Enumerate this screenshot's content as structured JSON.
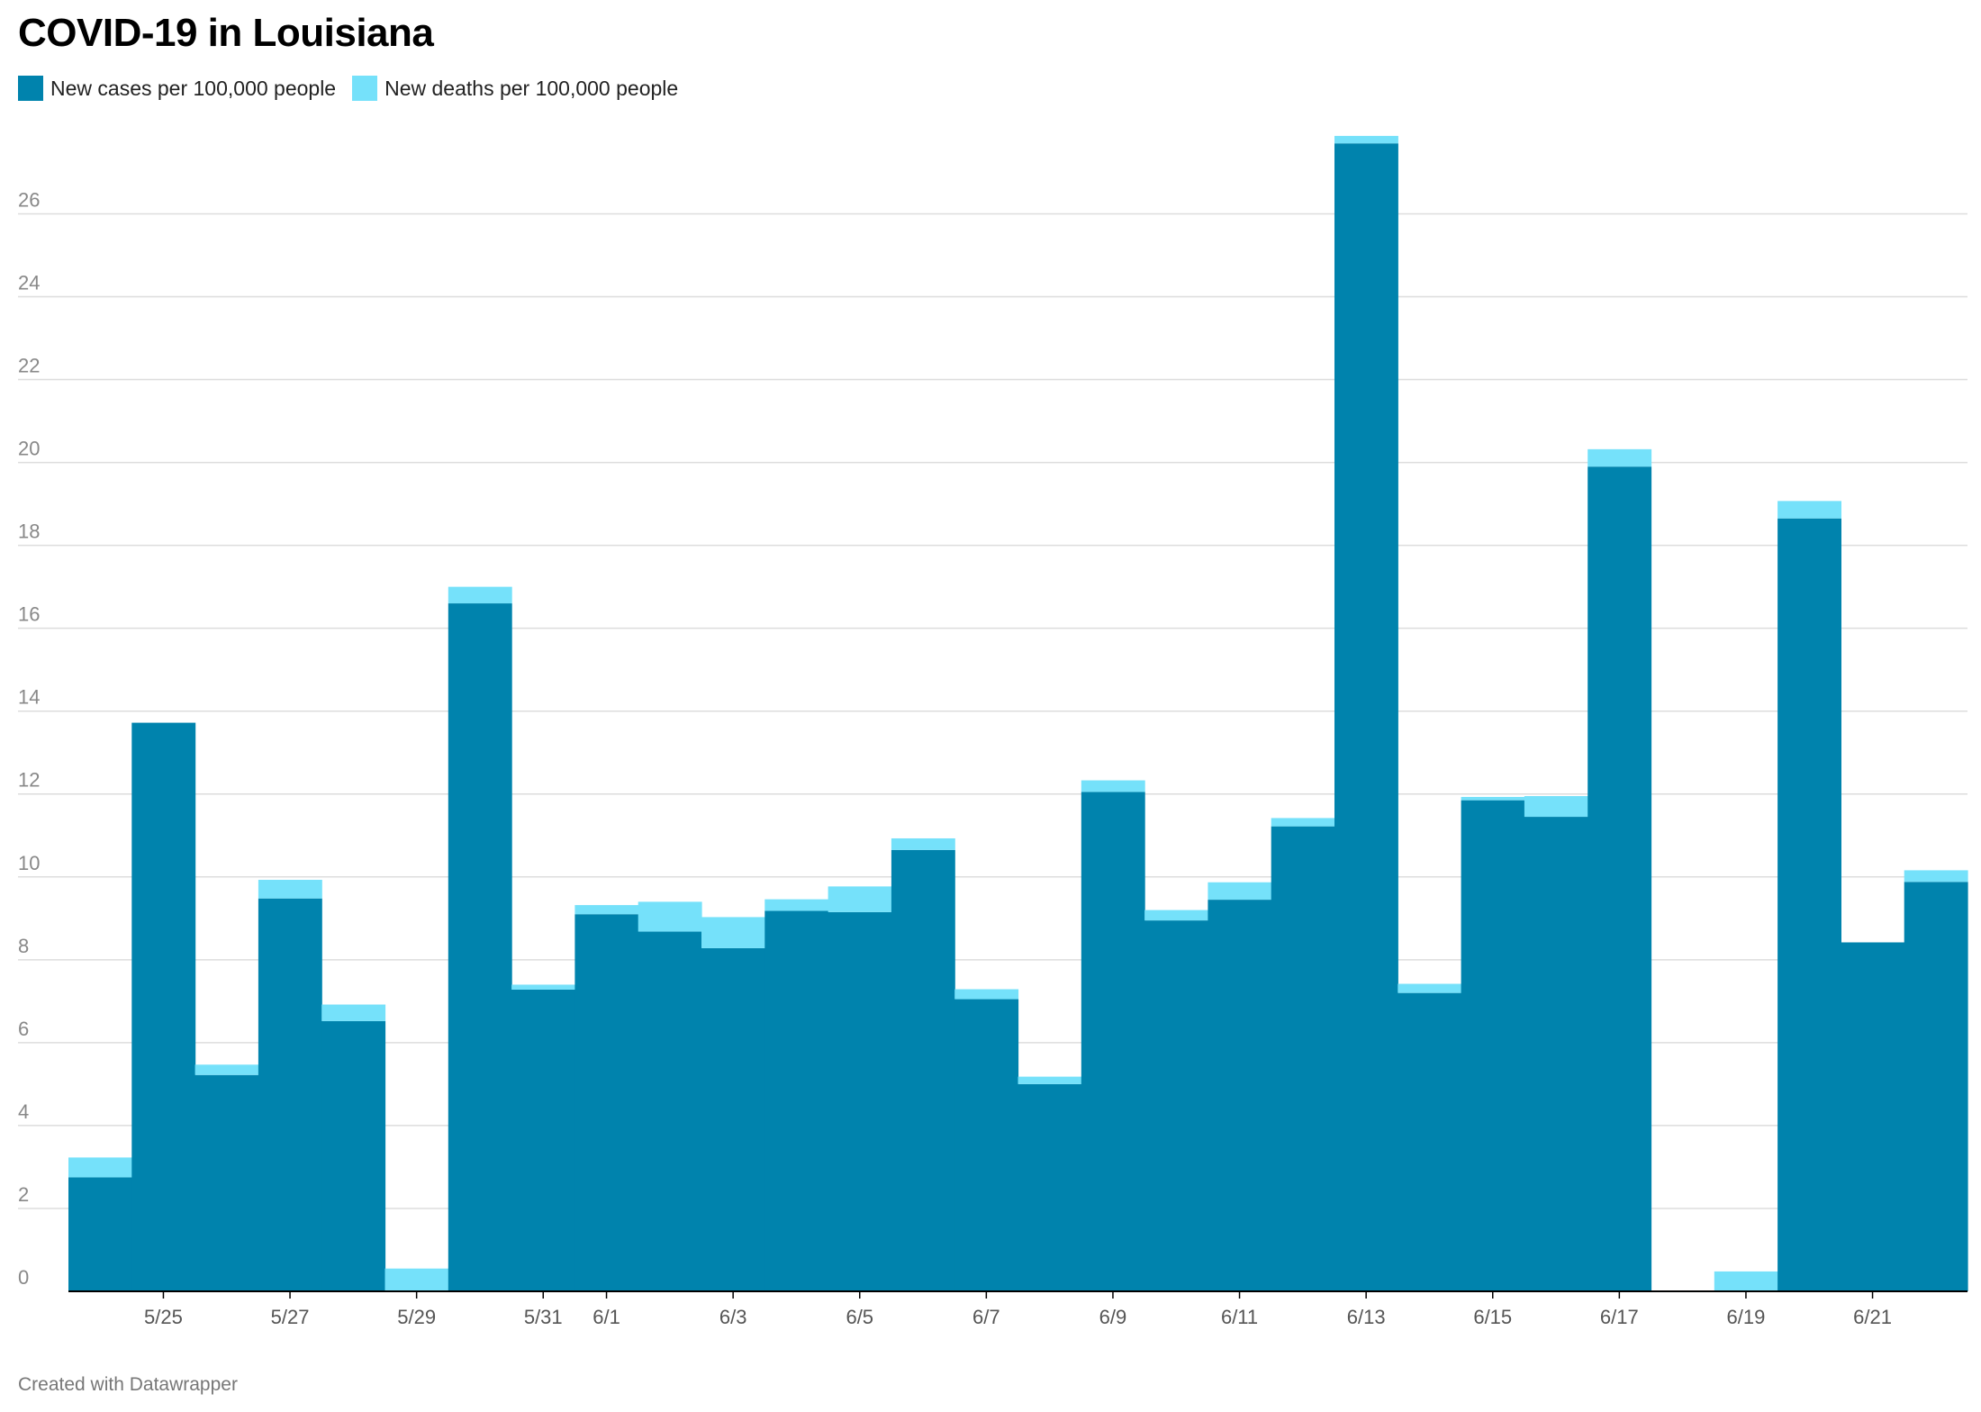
{
  "title": "COVID-19 in Louisiana",
  "footer": "Created with Datawrapper",
  "colors": {
    "cases": "#0083ad",
    "deaths": "#75e1fa",
    "grid": "#dddddd",
    "axis": "#000000"
  },
  "legend": [
    {
      "label": "New cases per 100,000 people",
      "color": "#0083ad"
    },
    {
      "label": "New deaths per 100,000 people",
      "color": "#75e1fa"
    }
  ],
  "chart_data": {
    "type": "bar",
    "stacked": true,
    "categories": [
      "5/24",
      "5/25",
      "5/26",
      "5/27",
      "5/28",
      "5/29",
      "5/30",
      "5/31",
      "6/1",
      "6/2",
      "6/3",
      "6/4",
      "6/5",
      "6/6",
      "6/7",
      "6/8",
      "6/9",
      "6/10",
      "6/11",
      "6/12",
      "6/13",
      "6/14",
      "6/15",
      "6/16",
      "6/17",
      "6/18",
      "6/19",
      "6/20",
      "6/21",
      "6/22"
    ],
    "x_tick_labels": [
      "5/25",
      "5/27",
      "5/29",
      "5/31",
      "6/1",
      "6/3",
      "6/5",
      "6/7",
      "6/9",
      "6/11",
      "6/13",
      "6/15",
      "6/17",
      "6/19",
      "6/21"
    ],
    "series": [
      {
        "name": "New cases per 100,000 people",
        "values": [
          2.75,
          13.72,
          5.22,
          9.48,
          6.52,
          0,
          16.6,
          7.28,
          9.1,
          8.68,
          8.28,
          9.18,
          9.15,
          10.65,
          7.05,
          5.0,
          12.05,
          8.95,
          9.45,
          11.22,
          27.7,
          7.2,
          11.85,
          11.45,
          19.9,
          0,
          0,
          18.65,
          8.42,
          9.88
        ]
      },
      {
        "name": "New deaths per 100,000 people",
        "values": [
          0.48,
          0,
          0.25,
          0.45,
          0.4,
          0.55,
          0.4,
          0.12,
          0.22,
          0.72,
          0.75,
          0.28,
          0.62,
          0.28,
          0.24,
          0.18,
          0.28,
          0.25,
          0.42,
          0.2,
          0.18,
          0.22,
          0.08,
          0.5,
          0.42,
          0,
          0.48,
          0.42,
          0,
          0.28
        ]
      }
    ],
    "y_ticks": [
      0,
      2,
      4,
      6,
      8,
      10,
      12,
      14,
      16,
      18,
      20,
      22,
      24,
      26
    ],
    "ylim": [
      0,
      27.9
    ],
    "grid": true,
    "legend_position": "top-left"
  }
}
